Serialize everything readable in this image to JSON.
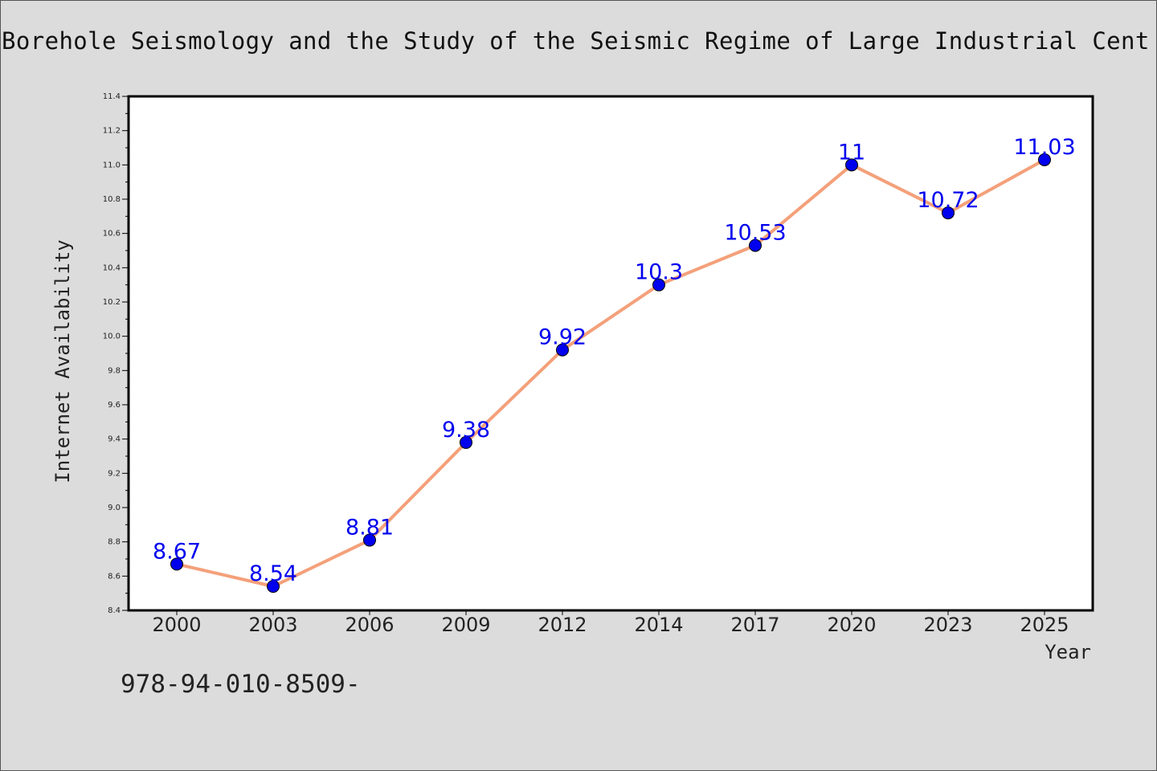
{
  "title": "Borehole Seismology and the Study of the Seismic Regime of Large Industrial Cent",
  "footer_text": "978-94-010-8509-",
  "chart_data": {
    "type": "line",
    "title": "Borehole Seismology and the Study of the Seismic Regime of Large Industrial Cent",
    "xlabel": "Year",
    "ylabel": "Internet Availability",
    "categories": [
      "2000",
      "2003",
      "2006",
      "2009",
      "2012",
      "2014",
      "2017",
      "2020",
      "2023",
      "2025"
    ],
    "values": [
      8.67,
      8.54,
      8.81,
      9.38,
      9.92,
      10.3,
      10.53,
      11,
      10.72,
      11.03
    ],
    "data_labels": [
      "8.67",
      "8.54",
      "8.81",
      "9.38",
      "9.92",
      "10.3",
      "10.53",
      "11",
      "10.72",
      "11.03"
    ],
    "ylim": [
      8.4,
      11.4
    ],
    "yticks": [
      "8.4",
      "8.6",
      "8.8",
      "9.0",
      "9.2",
      "9.4",
      "9.6",
      "9.8",
      "10.0",
      "10.2",
      "10.4",
      "10.6",
      "10.8",
      "11.0",
      "11.2",
      "11.4"
    ],
    "grid": false,
    "legend": "none",
    "line_color": "#f4a07a",
    "marker_color": "#0000ee",
    "label_color": "#0000ee"
  }
}
